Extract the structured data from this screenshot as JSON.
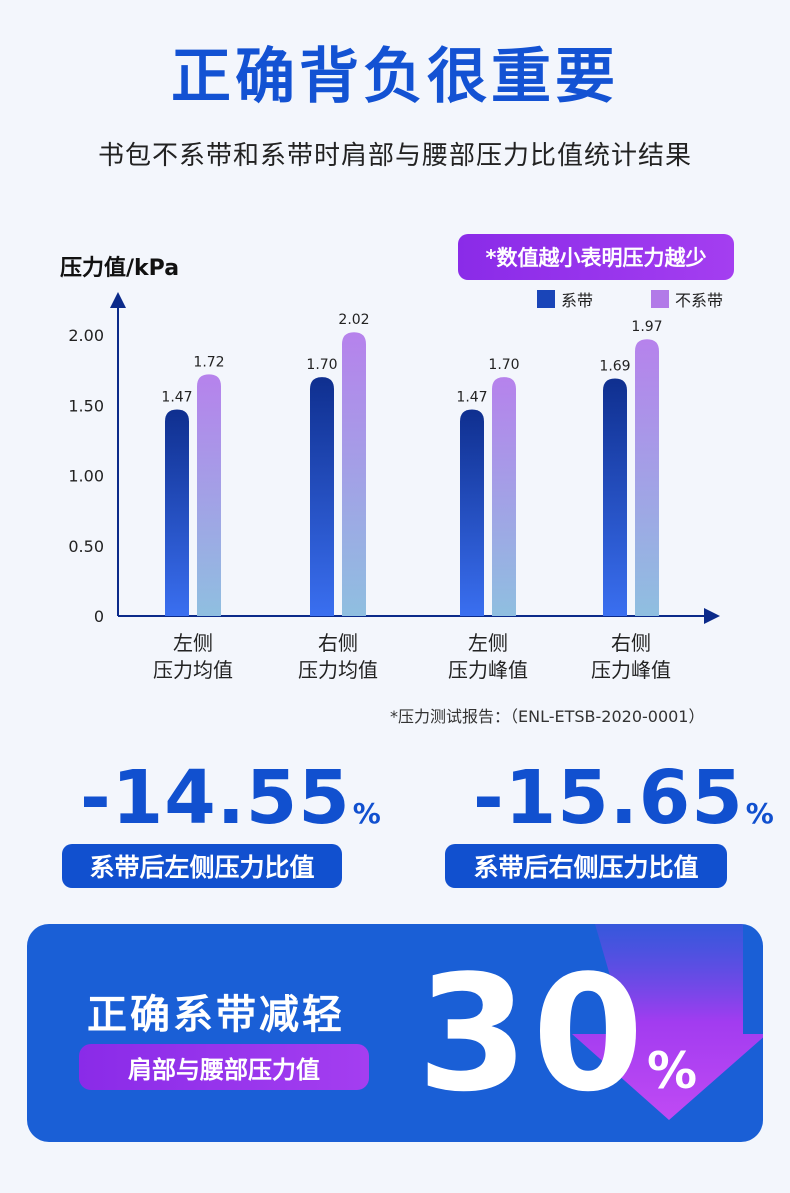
{
  "header": {
    "title": "正确背负很重要",
    "subtitle": "书包不系带和系带时肩部与腰部压力比值统计结果"
  },
  "note": "*数值越小表明压力越少",
  "colors": {
    "blue_top": "#0f2f8f",
    "blue_bottom": "#3a6ff0",
    "purple_top": "#b682ec",
    "purple_bottom": "#8fbfe0",
    "accent": "#1150cf",
    "violet": "#9333ea"
  },
  "chart_data": {
    "type": "bar",
    "ylabel": "压力值/kPa",
    "categories": [
      [
        "左侧",
        "压力均值"
      ],
      [
        "右侧",
        "压力均值"
      ],
      [
        "左侧",
        "压力峰值"
      ],
      [
        "右侧",
        "压力峰值"
      ]
    ],
    "series": [
      {
        "name": "系带",
        "values": [
          1.47,
          1.7,
          1.47,
          1.69
        ],
        "labels": [
          "1.47",
          "1.70",
          "1.47",
          "1.69"
        ]
      },
      {
        "name": "不系带",
        "values": [
          1.72,
          2.02,
          1.7,
          1.97
        ],
        "labels": [
          "1.72",
          "2.02",
          "1.70",
          "1.97"
        ]
      }
    ],
    "yticks": [
      "0",
      "0.50",
      "1.00",
      "1.50",
      "2.00"
    ],
    "ytick_values": [
      0,
      0.5,
      1.0,
      1.5,
      2.0
    ],
    "ylim": [
      0,
      2.2
    ],
    "legend": "top-right",
    "grid": false
  },
  "footnote": "*压力测试报告：（ENL-ETSB-2020-0001）",
  "stats": [
    {
      "value": "-14.55",
      "unit": "%",
      "label": "系带后左侧压力比值"
    },
    {
      "value": "-15.65",
      "unit": "%",
      "label": "系带后右侧压力比值"
    }
  ],
  "panel": {
    "heading": "正确系带减轻",
    "pill": "肩部与腰部压力值",
    "value": "30",
    "unit": "%"
  }
}
